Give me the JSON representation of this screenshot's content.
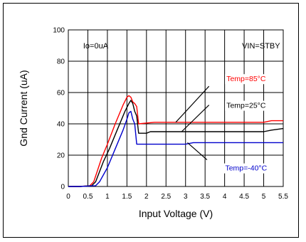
{
  "chart_data": {
    "type": "line",
    "xlabel": "Input Voltage (V)",
    "ylabel": "Gnd Current (uA)",
    "xlim": [
      0,
      5.5
    ],
    "ylim": [
      0,
      100
    ],
    "x_ticks": [
      "0",
      "0.5",
      "1",
      "1.5",
      "2",
      "2.5",
      "3",
      "3.5",
      "4",
      "4.5",
      "5",
      "5.5"
    ],
    "y_ticks": [
      "0",
      "20",
      "40",
      "60",
      "80",
      "100"
    ],
    "grid": true,
    "annotations": {
      "left": "Io=0uA",
      "right": "VIN=STBY"
    },
    "series": [
      {
        "name": "Temp=85°C",
        "color": "#ff0000",
        "x": [
          0,
          0.3,
          0.55,
          0.65,
          0.85,
          1.0,
          1.2,
          1.4,
          1.5,
          1.55,
          1.6,
          1.65,
          1.7,
          1.75,
          1.8,
          2.2,
          3.0,
          4.0,
          5.0,
          5.2,
          5.5
        ],
        "y": [
          0,
          0,
          0.5,
          3,
          18,
          27,
          40,
          52,
          57,
          58,
          57,
          54,
          53,
          51,
          40,
          41,
          41,
          41,
          41,
          42,
          42
        ]
      },
      {
        "name": "Temp=25°C",
        "color": "#000000",
        "x": [
          0,
          0.3,
          0.6,
          0.7,
          0.9,
          1.05,
          1.25,
          1.45,
          1.55,
          1.6,
          1.65,
          1.7,
          1.75,
          1.8,
          2.0,
          2.1,
          3.0,
          4.0,
          5.0,
          5.2,
          5.5
        ],
        "y": [
          0,
          0,
          0.5,
          3,
          16,
          24,
          36,
          48,
          53,
          55,
          53,
          48,
          45,
          34,
          34,
          35,
          35,
          35,
          35,
          36,
          37
        ]
      },
      {
        "name": "Temp=-40°C",
        "color": "#0000cc",
        "x": [
          0,
          0.3,
          0.7,
          0.8,
          1.0,
          1.2,
          1.4,
          1.5,
          1.55,
          1.6,
          1.65,
          1.7,
          1.75,
          2.0,
          3.0,
          3.2,
          4.0,
          5.0,
          5.2,
          5.5
        ],
        "y": [
          0,
          0,
          0.5,
          3,
          12,
          24,
          36,
          43,
          47,
          48,
          43,
          40,
          27,
          27,
          27,
          28,
          28,
          28,
          28,
          28
        ]
      }
    ],
    "legend_callouts": [
      {
        "text": "Temp=85°C",
        "color": "#ff0000",
        "label_x": 4.55,
        "label_y": 69,
        "line_from": [
          3.6,
          64
        ],
        "line_to": [
          2.75,
          41
        ]
      },
      {
        "text": "Temp=25°C",
        "color": "#000000",
        "label_x": 4.55,
        "label_y": 52,
        "line_from": [
          3.6,
          52
        ],
        "line_to": [
          2.9,
          35
        ]
      },
      {
        "text": "Temp=-40°C",
        "color": "#0000cc",
        "label_x": 4.55,
        "label_y": 12,
        "line_from": [
          3.55,
          17
        ],
        "line_to": [
          3.05,
          28
        ]
      }
    ]
  }
}
